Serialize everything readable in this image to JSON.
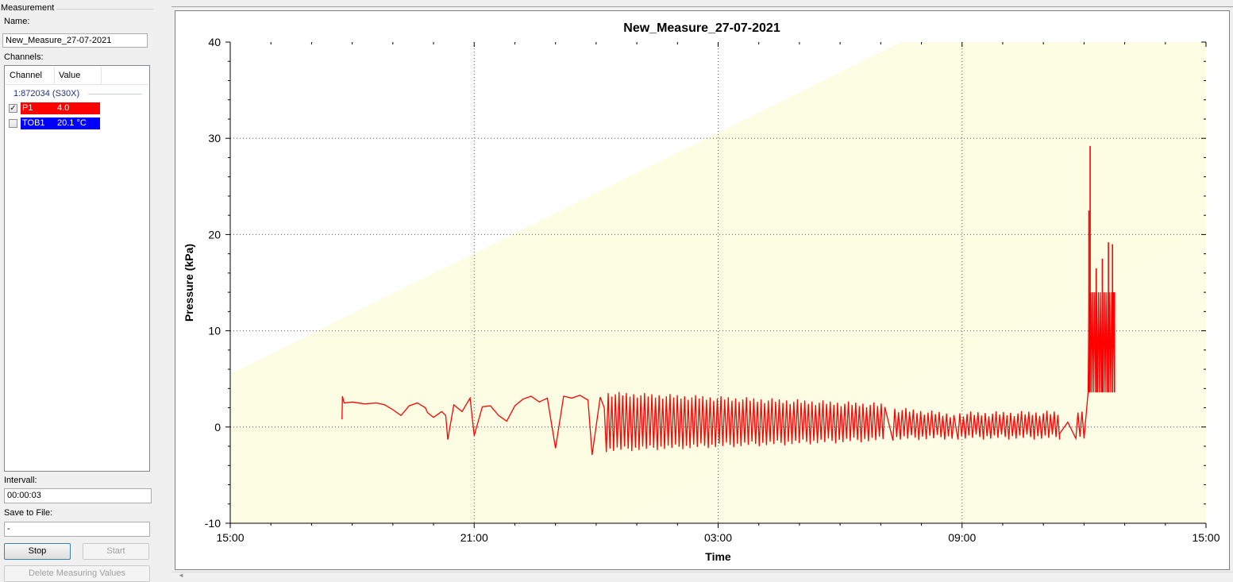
{
  "panel": {
    "group_title": "Measurement",
    "name_label": "Name:",
    "name_value": "New_Measure_27-07-2021",
    "channels_label": "Channels:",
    "columns": [
      "Channel",
      "Value"
    ],
    "device_group": "1:872034 (S30X)",
    "channels": [
      {
        "name": "P1",
        "value": "4.0",
        "checked": true,
        "color": "#ff0000"
      },
      {
        "name": "TOB1",
        "value": "20.1 °C",
        "checked": false,
        "color": "#0000ff"
      }
    ],
    "interval_label": "Intervall:",
    "interval_value": "00:00:03",
    "save_label": "Save to File:",
    "save_value": "-",
    "stop_label": "Stop",
    "start_label": "Start",
    "delete_label": "Delete Measuring Values"
  },
  "chart_data": {
    "type": "line",
    "title": "New_Measure_27-07-2021",
    "xlabel": "Time",
    "ylabel": "Pressure (kPa)",
    "x_ticks": [
      "15:00",
      "21:00",
      "03:00",
      "09:00",
      "15:00"
    ],
    "y_ticks": [
      -10,
      0,
      10,
      20,
      30,
      40
    ],
    "xlim_hours": [
      0,
      24
    ],
    "ylim": [
      -10,
      40
    ],
    "grid": true,
    "background_band_color": "#fdfde4",
    "series": [
      {
        "color": "#ff0000",
        "segments": [
          {
            "x_hours": [
              2.75,
              2.76,
              2.8,
              3.0,
              3.3,
              3.6,
              3.8,
              4.0,
              4.2,
              4.4,
              4.6,
              4.8,
              4.85,
              5.0,
              5.2,
              5.3
            ],
            "y": [
              0.8,
              3.2,
              2.5,
              2.6,
              2.4,
              2.5,
              2.3,
              1.8,
              1.2,
              2.2,
              2.5,
              2.0,
              1.5,
              1.0,
              1.6,
              1.2
            ]
          },
          {
            "x_hours": [
              5.35,
              5.5,
              5.7,
              5.9,
              6.0,
              6.2,
              6.4,
              6.6,
              6.8,
              7.0,
              7.2,
              7.4,
              7.6,
              7.8,
              8.0,
              8.2,
              8.4
            ],
            "y": [
              -1.3,
              2.3,
              1.6,
              3.0,
              -0.9,
              2.1,
              2.2,
              1.2,
              0.6,
              2.2,
              2.9,
              3.2,
              2.6,
              3.0,
              -2.2,
              3.2,
              3.0
            ]
          },
          {
            "x_hours": [
              8.6,
              8.8,
              8.9,
              9.1,
              9.2
            ],
            "y": [
              3.3,
              2.8,
              -2.9,
              3.1,
              2.0
            ]
          }
        ],
        "bands": [
          {
            "x_start": 9.25,
            "x_end": 16.1,
            "y_low_start": -2.6,
            "y_low_end": -1.5,
            "y_high_start": 3.7,
            "y_high_end": 2.5
          },
          {
            "x_start": 16.3,
            "x_end": 17.8,
            "y_low_start": -1.4,
            "y_low_end": -1.3,
            "y_high_start": 2.1,
            "y_high_end": 1.5
          },
          {
            "x_start": 17.9,
            "x_end": 20.4,
            "y_low_start": -1.3,
            "y_low_end": -1.3,
            "y_high_start": 1.6,
            "y_high_end": 1.7
          }
        ],
        "tail": {
          "x_hours": [
            20.4,
            20.6,
            20.8,
            20.85,
            20.9,
            20.95,
            21.0
          ],
          "y": [
            -0.7,
            0.5,
            -1.2,
            1.5,
            -1.0,
            1.6,
            -1.2
          ]
        },
        "spike_zone": {
          "x_start": 21.1,
          "x_end": 21.75,
          "base_low": 3.6,
          "base_high": 14.0,
          "peaks": [
            {
              "x": 21.12,
              "y": 22.5
            },
            {
              "x": 21.15,
              "y": 29.2
            },
            {
              "x": 21.3,
              "y": 16.5
            },
            {
              "x": 21.45,
              "y": 17.5
            },
            {
              "x": 21.6,
              "y": 19.2
            },
            {
              "x": 21.7,
              "y": 19.0
            }
          ],
          "last": {
            "x": 21.75,
            "y": 4.0
          }
        }
      }
    ]
  }
}
